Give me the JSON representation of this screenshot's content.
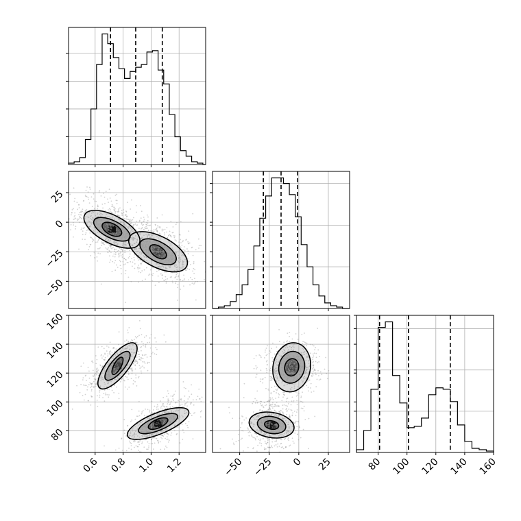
{
  "chart_data": {
    "type": "corner",
    "grid": true,
    "parameters": [
      {
        "ticks": [
          0.6,
          0.8,
          1.0,
          1.2
        ],
        "tick_labels": [
          "0.6",
          "0.8",
          "1.0",
          "1.2"
        ],
        "range": [
          0.41,
          1.39
        ],
        "quantiles": [
          0.71,
          0.89,
          1.08
        ]
      },
      {
        "ticks": [
          -50,
          -25,
          0,
          25
        ],
        "tick_labels": [
          "−50",
          "−25",
          "0",
          "25"
        ],
        "range": [
          -73,
          43
        ],
        "quantiles": [
          -30,
          -15,
          -1
        ]
      },
      {
        "ticks": [
          80,
          100,
          120,
          140,
          160
        ],
        "tick_labels": [
          "80",
          "100",
          "120",
          "140",
          "160"
        ],
        "range": [
          65,
          160
        ],
        "quantiles": [
          81,
          101,
          130
        ]
      }
    ],
    "histograms": [
      {
        "bins": [
          0.41,
          0.45,
          0.49,
          0.53,
          0.57,
          0.61,
          0.65,
          0.69,
          0.73,
          0.77,
          0.81,
          0.85,
          0.89,
          0.93,
          0.97,
          1.01,
          1.05,
          1.09,
          1.13,
          1.17,
          1.21,
          1.25,
          1.29,
          1.33,
          1.37,
          1.39
        ],
        "counts": [
          1,
          2,
          5,
          18,
          40,
          72,
          94,
          87,
          77,
          69,
          62,
          67,
          70,
          72,
          81,
          82,
          68,
          58,
          36,
          20,
          10,
          6,
          2,
          1,
          0
        ]
      },
      {
        "bins": [
          -73,
          -68,
          -63,
          -58,
          -53,
          -48,
          -43,
          -38,
          -33,
          -28,
          -23,
          -18,
          -13,
          -8,
          -3,
          2,
          7,
          12,
          17,
          22,
          27,
          32,
          37,
          43
        ],
        "counts": [
          0,
          1,
          2,
          5,
          10,
          17,
          28,
          45,
          65,
          81,
          94,
          94,
          90,
          82,
          66,
          46,
          30,
          17,
          9,
          4,
          2,
          1,
          0
        ]
      },
      {
        "bins": [
          65,
          70,
          75,
          80,
          85,
          90,
          95,
          100,
          105,
          110,
          115,
          120,
          125,
          130,
          135,
          140,
          145,
          150,
          155,
          160
        ],
        "counts": [
          2,
          16,
          46,
          91,
          95,
          56,
          36,
          18,
          19,
          25,
          42,
          47,
          46,
          37,
          20,
          8,
          3,
          2,
          1
        ]
      }
    ],
    "density_panels": [
      {
        "x_param": 0,
        "y_param": 1,
        "modes": [
          {
            "center": [
              0.72,
              -6
            ],
            "contour_sizes": [
              [
                0.2,
                16,
                -0.6
              ],
              [
                0.13,
                10,
                -0.6
              ],
              [
                0.07,
                6,
                -0.5
              ]
            ],
            "level": 0.95
          },
          {
            "center": [
              1.05,
              -25
            ],
            "contour_sizes": [
              [
                0.21,
                17,
                -0.55
              ],
              [
                0.13,
                11,
                -0.55
              ],
              [
                0.06,
                6,
                -0.5
              ]
            ],
            "level": 0.75
          }
        ],
        "scatter_count": 1400,
        "scatter_spread": [
          0.15,
          15,
          -0.5
        ]
      },
      {
        "x_param": 0,
        "y_param": 2,
        "modes": [
          {
            "center": [
              0.76,
              125
            ],
            "contour_sizes": [
              [
                0.14,
                16,
                0.75
              ],
              [
                0.09,
                10,
                0.75
              ],
              [
                0.04,
                6,
                0.7
              ]
            ],
            "level": 0.55
          },
          {
            "center": [
              1.05,
              85
            ],
            "contour_sizes": [
              [
                0.22,
                11,
                0.7
              ],
              [
                0.14,
                7,
                0.7
              ],
              [
                0.07,
                4,
                0.6
              ]
            ],
            "level": 0.95
          }
        ],
        "scatter_count": 1200,
        "scatter_spread": [
          0.12,
          10,
          0.6
        ]
      },
      {
        "x_param": 1,
        "y_param": 2,
        "modes": [
          {
            "center": [
              -6,
              124
            ],
            "contour_sizes": [
              [
                16,
                17,
                0.1
              ],
              [
                11,
                11,
                0.1
              ],
              [
                6,
                6,
                0.1
              ]
            ],
            "level": 0.55
          },
          {
            "center": [
              -23,
              84
            ],
            "contour_sizes": [
              [
                19,
                9,
                -0.2
              ],
              [
                12,
                6,
                -0.2
              ],
              [
                6,
                3,
                -0.2
              ]
            ],
            "level": 0.95
          }
        ],
        "scatter_count": 1200,
        "scatter_spread": [
          12,
          9,
          0.1
        ]
      }
    ]
  }
}
